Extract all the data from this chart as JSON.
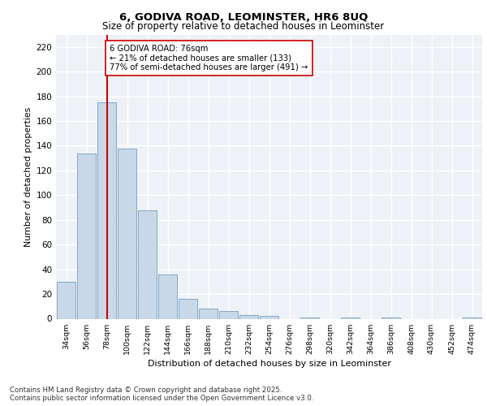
{
  "title_line1": "6, GODIVA ROAD, LEOMINSTER, HR6 8UQ",
  "title_line2": "Size of property relative to detached houses in Leominster",
  "xlabel": "Distribution of detached houses by size in Leominster",
  "ylabel": "Number of detached properties",
  "categories": [
    "34sqm",
    "56sqm",
    "78sqm",
    "100sqm",
    "122sqm",
    "144sqm",
    "166sqm",
    "188sqm",
    "210sqm",
    "232sqm",
    "254sqm",
    "276sqm",
    "298sqm",
    "320sqm",
    "342sqm",
    "364sqm",
    "386sqm",
    "408sqm",
    "430sqm",
    "452sqm",
    "474sqm"
  ],
  "values": [
    30,
    134,
    175,
    138,
    88,
    36,
    16,
    8,
    6,
    3,
    2,
    0,
    1,
    0,
    1,
    0,
    1,
    0,
    0,
    0,
    1
  ],
  "bar_color": "#c8d8e8",
  "bar_edge_color": "#6090b8",
  "vline_x": 2,
  "vline_color": "#cc0000",
  "annotation_text": "6 GODIVA ROAD: 76sqm\n← 21% of detached houses are smaller (133)\n77% of semi-detached houses are larger (491) →",
  "annotation_box_color": "#ffffff",
  "annotation_box_edge": "#cc0000",
  "background_color": "#eef2f7",
  "grid_color": "#ffffff",
  "footer_line1": "Contains HM Land Registry data © Crown copyright and database right 2025.",
  "footer_line2": "Contains public sector information licensed under the Open Government Licence v3.0.",
  "ylim": [
    0,
    230
  ],
  "yticks": [
    0,
    20,
    40,
    60,
    80,
    100,
    120,
    140,
    160,
    180,
    200,
    220
  ]
}
